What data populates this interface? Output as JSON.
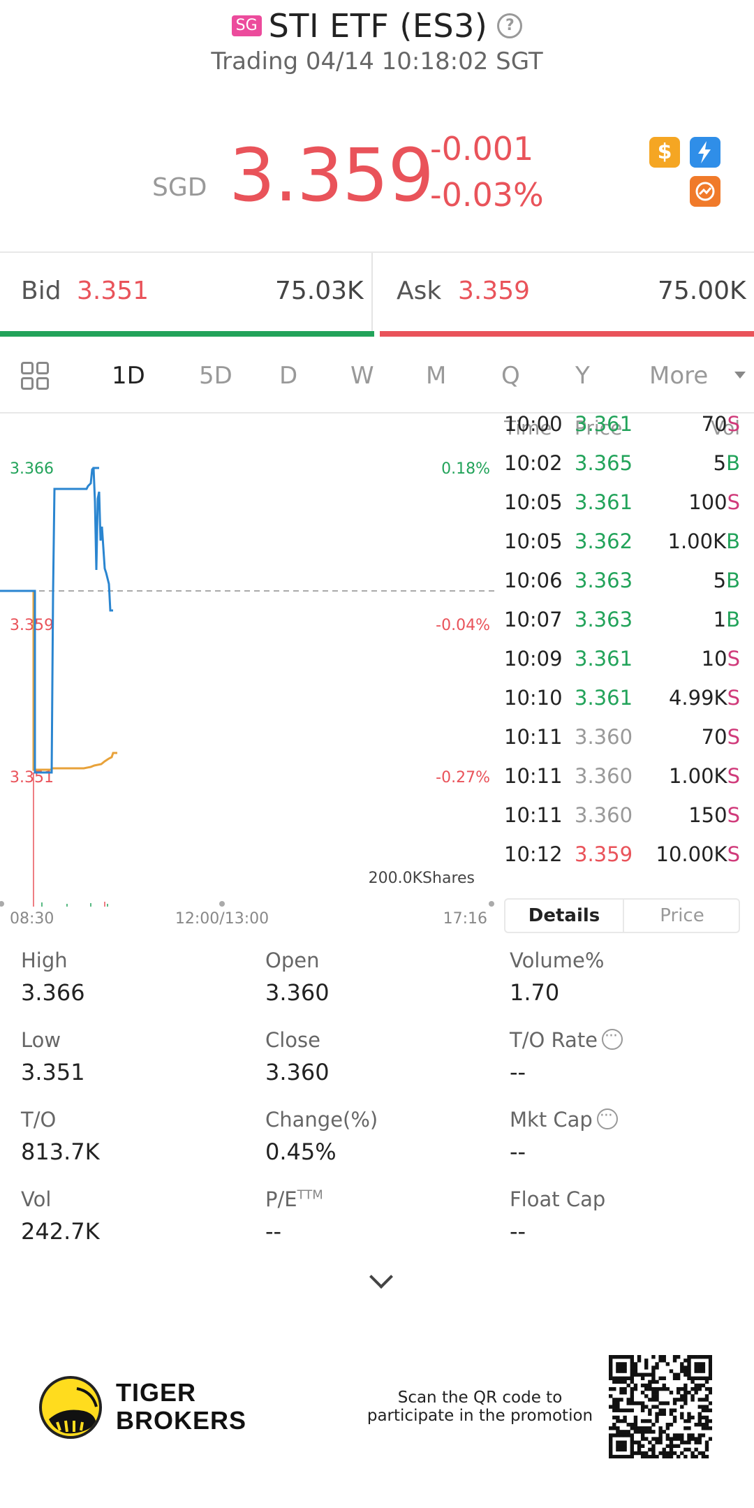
{
  "header": {
    "market_badge": "SG",
    "title": "STI ETF (ES3)",
    "subtitle": "Trading 04/14 10:18:02 SGT"
  },
  "quote": {
    "currency": "SGD",
    "price": "3.359",
    "change": "-0.001",
    "change_pct": "-0.03%",
    "icons": [
      "dollar-icon",
      "lightning-icon",
      "sync-icon"
    ]
  },
  "bid_ask": {
    "bid_label": "Bid",
    "bid_price": "3.351",
    "bid_vol": "75.03K",
    "ask_label": "Ask",
    "ask_price": "3.359",
    "ask_vol": "75.00K",
    "bid_ratio": 0.5
  },
  "period_tabs": {
    "items": [
      "1D",
      "5D",
      "D",
      "W",
      "M",
      "Q",
      "Y",
      "More"
    ],
    "active": "1D"
  },
  "chart": {
    "y_labels_left": [
      "3.366",
      "3.359",
      "3.351"
    ],
    "y_labels_right": [
      "0.18%",
      "-0.04%",
      "-0.27%"
    ],
    "volume_label": "200.0KShares",
    "x_labels": [
      "08:30",
      "12:00/13:00",
      "17:16"
    ]
  },
  "ticks": {
    "headers": {
      "time": "Time",
      "price": "Price",
      "vol": "Vol"
    },
    "rows": [
      {
        "time": "10:00",
        "price": "3.361",
        "vol": "70",
        "side": "S",
        "dir": "up"
      },
      {
        "time": "10:02",
        "price": "3.365",
        "vol": "5",
        "side": "B",
        "dir": "up"
      },
      {
        "time": "10:05",
        "price": "3.361",
        "vol": "100",
        "side": "S",
        "dir": "up"
      },
      {
        "time": "10:05",
        "price": "3.362",
        "vol": "1.00K",
        "side": "B",
        "dir": "up"
      },
      {
        "time": "10:06",
        "price": "3.363",
        "vol": "5",
        "side": "B",
        "dir": "up"
      },
      {
        "time": "10:07",
        "price": "3.363",
        "vol": "1",
        "side": "B",
        "dir": "up"
      },
      {
        "time": "10:09",
        "price": "3.361",
        "vol": "10",
        "side": "S",
        "dir": "up"
      },
      {
        "time": "10:10",
        "price": "3.361",
        "vol": "4.99K",
        "side": "S",
        "dir": "up"
      },
      {
        "time": "10:11",
        "price": "3.360",
        "vol": "70",
        "side": "S",
        "dir": "flat"
      },
      {
        "time": "10:11",
        "price": "3.360",
        "vol": "1.00K",
        "side": "S",
        "dir": "flat"
      },
      {
        "time": "10:11",
        "price": "3.360",
        "vol": "150",
        "side": "S",
        "dir": "flat"
      },
      {
        "time": "10:12",
        "price": "3.359",
        "vol": "10.00K",
        "side": "S",
        "dir": "down"
      }
    ]
  },
  "detail_tabs": {
    "details": "Details",
    "price": "Price"
  },
  "stats": {
    "high": {
      "label": "High",
      "value": "3.366"
    },
    "open": {
      "label": "Open",
      "value": "3.360"
    },
    "volume_pct": {
      "label": "Volume%",
      "value": "1.70"
    },
    "low": {
      "label": "Low",
      "value": "3.351"
    },
    "close": {
      "label": "Close",
      "value": "3.360"
    },
    "to_rate": {
      "label": "T/O Rate",
      "value": "--"
    },
    "to": {
      "label": "T/O",
      "value": "813.7K"
    },
    "change_pct": {
      "label": "Change(%)",
      "value": "0.45%"
    },
    "mkt_cap": {
      "label": "Mkt Cap",
      "value": "--"
    },
    "vol": {
      "label": "Vol",
      "value": "242.7K"
    },
    "pe": {
      "label": "P/E",
      "sup": "TTM",
      "value": "--"
    },
    "float_cap": {
      "label": "Float Cap",
      "value": "--"
    }
  },
  "footer": {
    "logo_line1": "TIGER",
    "logo_line2": "BROKERS",
    "promo_line1": "Scan the QR code to",
    "promo_line2": "participate in the promotion"
  },
  "colors": {
    "down": "#e9535a",
    "up": "#22a35a",
    "sell": "#d03a7a",
    "price_line": "#2a85d0",
    "avg_line": "#e8a23a"
  }
}
